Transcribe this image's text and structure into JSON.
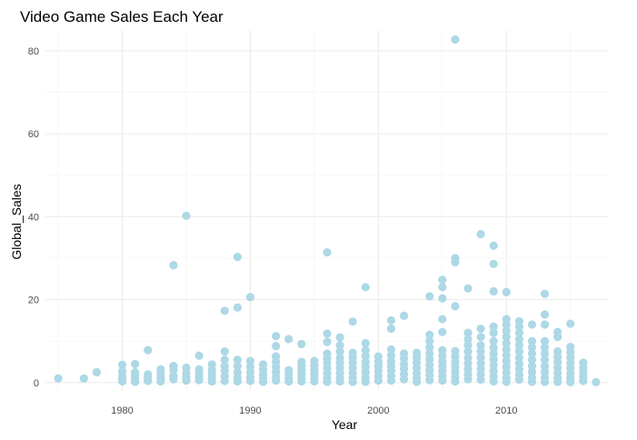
{
  "chart_data": {
    "type": "scatter",
    "title": "Video Game Sales Each Year",
    "xlabel": "Year",
    "ylabel": "Global_Sales",
    "xlim": [
      1974,
      2018
    ],
    "ylim": [
      -2,
      85
    ],
    "x_ticks": [
      1980,
      1990,
      2000,
      2010
    ],
    "y_ticks": [
      0,
      20,
      40,
      60,
      80
    ],
    "x_tick_labels": [
      "1980",
      "1990",
      "2000",
      "2010"
    ],
    "y_tick_labels": [
      "0",
      "20",
      "40",
      "60",
      "80"
    ],
    "grid": true,
    "legend": "none",
    "point_color": "#add8e6",
    "series": [
      {
        "points": [
          [
            1975,
            1.0
          ],
          [
            1977,
            1.0
          ],
          [
            1978,
            2.5
          ],
          [
            1980,
            4.3
          ],
          [
            1980,
            2.7
          ],
          [
            1980,
            1.5
          ],
          [
            1980,
            0.8
          ],
          [
            1980,
            0.3
          ],
          [
            1981,
            4.5
          ],
          [
            1981,
            2.5
          ],
          [
            1981,
            1.8
          ],
          [
            1981,
            1.2
          ],
          [
            1981,
            0.6
          ],
          [
            1981,
            0.2
          ],
          [
            1982,
            7.8
          ],
          [
            1982,
            2.0
          ],
          [
            1982,
            1.4
          ],
          [
            1982,
            0.9
          ],
          [
            1982,
            0.4
          ],
          [
            1983,
            3.2
          ],
          [
            1983,
            2.2
          ],
          [
            1983,
            1.3
          ],
          [
            1983,
            0.7
          ],
          [
            1983,
            0.3
          ],
          [
            1984,
            28.3
          ],
          [
            1984,
            4.0
          ],
          [
            1984,
            3.0
          ],
          [
            1984,
            1.6
          ],
          [
            1984,
            0.8
          ],
          [
            1985,
            40.2
          ],
          [
            1985,
            3.6
          ],
          [
            1985,
            2.4
          ],
          [
            1985,
            1.4
          ],
          [
            1985,
            0.5
          ],
          [
            1986,
            6.5
          ],
          [
            1986,
            3.2
          ],
          [
            1986,
            2.3
          ],
          [
            1986,
            1.4
          ],
          [
            1986,
            0.6
          ],
          [
            1987,
            4.4
          ],
          [
            1987,
            3.1
          ],
          [
            1987,
            2.0
          ],
          [
            1987,
            1.1
          ],
          [
            1987,
            0.3
          ],
          [
            1988,
            17.3
          ],
          [
            1988,
            7.5
          ],
          [
            1988,
            5.5
          ],
          [
            1988,
            4.0
          ],
          [
            1988,
            2.8
          ],
          [
            1988,
            1.5
          ],
          [
            1988,
            0.4
          ],
          [
            1989,
            30.3
          ],
          [
            1989,
            18.1
          ],
          [
            1989,
            5.5
          ],
          [
            1989,
            4.0
          ],
          [
            1989,
            2.5
          ],
          [
            1989,
            1.2
          ],
          [
            1989,
            0.3
          ],
          [
            1990,
            20.6
          ],
          [
            1990,
            5.2
          ],
          [
            1990,
            3.8
          ],
          [
            1990,
            2.5
          ],
          [
            1990,
            1.3
          ],
          [
            1990,
            0.4
          ],
          [
            1991,
            4.4
          ],
          [
            1991,
            3.2
          ],
          [
            1991,
            2.0
          ],
          [
            1991,
            1.0
          ],
          [
            1991,
            0.2
          ],
          [
            1992,
            11.2
          ],
          [
            1992,
            8.8
          ],
          [
            1992,
            6.3
          ],
          [
            1992,
            5.0
          ],
          [
            1992,
            3.8
          ],
          [
            1992,
            2.6
          ],
          [
            1992,
            1.5
          ],
          [
            1992,
            0.5
          ],
          [
            1993,
            10.5
          ],
          [
            1993,
            3.0
          ],
          [
            1993,
            2.0
          ],
          [
            1993,
            1.0
          ],
          [
            1993,
            0.3
          ],
          [
            1994,
            9.3
          ],
          [
            1994,
            5.0
          ],
          [
            1994,
            4.0
          ],
          [
            1994,
            3.0
          ],
          [
            1994,
            2.0
          ],
          [
            1994,
            1.0
          ],
          [
            1994,
            0.3
          ],
          [
            1995,
            5.2
          ],
          [
            1995,
            4.1
          ],
          [
            1995,
            3.0
          ],
          [
            1995,
            2.0
          ],
          [
            1995,
            1.0
          ],
          [
            1995,
            0.3
          ],
          [
            1996,
            31.4
          ],
          [
            1996,
            11.8
          ],
          [
            1996,
            9.8
          ],
          [
            1996,
            7.0
          ],
          [
            1996,
            5.8
          ],
          [
            1996,
            4.6
          ],
          [
            1996,
            3.4
          ],
          [
            1996,
            2.2
          ],
          [
            1996,
            1.0
          ],
          [
            1996,
            0.2
          ],
          [
            1997,
            10.9
          ],
          [
            1997,
            9.0
          ],
          [
            1997,
            7.5
          ],
          [
            1997,
            6.0
          ],
          [
            1997,
            4.8
          ],
          [
            1997,
            3.6
          ],
          [
            1997,
            2.4
          ],
          [
            1997,
            1.2
          ],
          [
            1997,
            0.3
          ],
          [
            1998,
            14.7
          ],
          [
            1998,
            7.2
          ],
          [
            1998,
            6.0
          ],
          [
            1998,
            4.8
          ],
          [
            1998,
            3.6
          ],
          [
            1998,
            2.4
          ],
          [
            1998,
            1.2
          ],
          [
            1998,
            0.2
          ],
          [
            1999,
            23.0
          ],
          [
            1999,
            9.5
          ],
          [
            1999,
            7.8
          ],
          [
            1999,
            6.4
          ],
          [
            1999,
            5.0
          ],
          [
            1999,
            3.8
          ],
          [
            1999,
            2.5
          ],
          [
            1999,
            1.2
          ],
          [
            1999,
            0.2
          ],
          [
            2000,
            6.3
          ],
          [
            2000,
            5.1
          ],
          [
            2000,
            4.0
          ],
          [
            2000,
            2.8
          ],
          [
            2000,
            1.6
          ],
          [
            2000,
            0.5
          ],
          [
            2001,
            15.0
          ],
          [
            2001,
            13.0
          ],
          [
            2001,
            8.0
          ],
          [
            2001,
            6.5
          ],
          [
            2001,
            5.2
          ],
          [
            2001,
            4.0
          ],
          [
            2001,
            2.8
          ],
          [
            2001,
            1.6
          ],
          [
            2001,
            0.5
          ],
          [
            2002,
            16.1
          ],
          [
            2002,
            7.0
          ],
          [
            2002,
            5.8
          ],
          [
            2002,
            4.5
          ],
          [
            2002,
            3.3
          ],
          [
            2002,
            2.0
          ],
          [
            2002,
            0.8
          ],
          [
            2003,
            7.2
          ],
          [
            2003,
            6.0
          ],
          [
            2003,
            4.7
          ],
          [
            2003,
            3.5
          ],
          [
            2003,
            2.2
          ],
          [
            2003,
            1.0
          ],
          [
            2003,
            0.2
          ],
          [
            2004,
            20.8
          ],
          [
            2004,
            11.5
          ],
          [
            2004,
            10.0
          ],
          [
            2004,
            8.5
          ],
          [
            2004,
            7.0
          ],
          [
            2004,
            5.6
          ],
          [
            2004,
            4.3
          ],
          [
            2004,
            3.0
          ],
          [
            2004,
            1.8
          ],
          [
            2004,
            0.6
          ],
          [
            2005,
            24.8
          ],
          [
            2005,
            23.0
          ],
          [
            2005,
            20.3
          ],
          [
            2005,
            15.3
          ],
          [
            2005,
            12.2
          ],
          [
            2005,
            7.8
          ],
          [
            2005,
            6.5
          ],
          [
            2005,
            5.2
          ],
          [
            2005,
            4.0
          ],
          [
            2005,
            2.8
          ],
          [
            2005,
            1.6
          ],
          [
            2005,
            0.5
          ],
          [
            2006,
            82.7
          ],
          [
            2006,
            30.0
          ],
          [
            2006,
            29.0
          ],
          [
            2006,
            18.4
          ],
          [
            2006,
            7.6
          ],
          [
            2006,
            6.3
          ],
          [
            2006,
            5.0
          ],
          [
            2006,
            3.8
          ],
          [
            2006,
            2.6
          ],
          [
            2006,
            1.4
          ],
          [
            2006,
            0.3
          ],
          [
            2007,
            22.7
          ],
          [
            2007,
            12.0
          ],
          [
            2007,
            10.5
          ],
          [
            2007,
            9.0
          ],
          [
            2007,
            7.5
          ],
          [
            2007,
            6.0
          ],
          [
            2007,
            4.6
          ],
          [
            2007,
            3.3
          ],
          [
            2007,
            2.0
          ],
          [
            2007,
            0.8
          ],
          [
            2008,
            35.8
          ],
          [
            2008,
            13.0
          ],
          [
            2008,
            11.0
          ],
          [
            2008,
            9.0
          ],
          [
            2008,
            7.5
          ],
          [
            2008,
            6.0
          ],
          [
            2008,
            4.6
          ],
          [
            2008,
            3.3
          ],
          [
            2008,
            2.0
          ],
          [
            2008,
            0.7
          ],
          [
            2009,
            33.0
          ],
          [
            2009,
            28.6
          ],
          [
            2009,
            22.0
          ],
          [
            2009,
            13.5
          ],
          [
            2009,
            12.0
          ],
          [
            2009,
            10.0
          ],
          [
            2009,
            8.4
          ],
          [
            2009,
            7.0
          ],
          [
            2009,
            5.6
          ],
          [
            2009,
            4.2
          ],
          [
            2009,
            2.8
          ],
          [
            2009,
            1.5
          ],
          [
            2009,
            0.3
          ],
          [
            2010,
            21.8
          ],
          [
            2010,
            15.3
          ],
          [
            2010,
            14.0
          ],
          [
            2010,
            12.5
          ],
          [
            2010,
            11.0
          ],
          [
            2010,
            9.5
          ],
          [
            2010,
            8.0
          ],
          [
            2010,
            6.6
          ],
          [
            2010,
            5.2
          ],
          [
            2010,
            3.8
          ],
          [
            2010,
            2.4
          ],
          [
            2010,
            1.2
          ],
          [
            2010,
            0.2
          ],
          [
            2011,
            14.8
          ],
          [
            2011,
            13.5
          ],
          [
            2011,
            12.0
          ],
          [
            2011,
            10.5
          ],
          [
            2011,
            9.0
          ],
          [
            2011,
            7.5
          ],
          [
            2011,
            6.0
          ],
          [
            2011,
            4.6
          ],
          [
            2011,
            3.2
          ],
          [
            2011,
            1.9
          ],
          [
            2011,
            0.7
          ],
          [
            2012,
            14.0
          ],
          [
            2012,
            10.0
          ],
          [
            2012,
            8.5
          ],
          [
            2012,
            7.0
          ],
          [
            2012,
            5.5
          ],
          [
            2012,
            4.0
          ],
          [
            2012,
            2.6
          ],
          [
            2012,
            1.3
          ],
          [
            2012,
            0.2
          ],
          [
            2013,
            21.4
          ],
          [
            2013,
            16.4
          ],
          [
            2013,
            14.0
          ],
          [
            2013,
            10.0
          ],
          [
            2013,
            8.5
          ],
          [
            2013,
            7.0
          ],
          [
            2013,
            5.5
          ],
          [
            2013,
            4.0
          ],
          [
            2013,
            2.6
          ],
          [
            2013,
            1.3
          ],
          [
            2013,
            0.2
          ],
          [
            2014,
            12.2
          ],
          [
            2014,
            11.0
          ],
          [
            2014,
            7.5
          ],
          [
            2014,
            6.2
          ],
          [
            2014,
            5.0
          ],
          [
            2014,
            3.7
          ],
          [
            2014,
            2.4
          ],
          [
            2014,
            1.2
          ],
          [
            2014,
            0.2
          ],
          [
            2015,
            14.2
          ],
          [
            2015,
            8.6
          ],
          [
            2015,
            7.3
          ],
          [
            2015,
            6.0
          ],
          [
            2015,
            4.7
          ],
          [
            2015,
            3.5
          ],
          [
            2015,
            2.2
          ],
          [
            2015,
            1.0
          ],
          [
            2015,
            0.1
          ],
          [
            2016,
            4.8
          ],
          [
            2016,
            3.6
          ],
          [
            2016,
            2.5
          ],
          [
            2016,
            1.4
          ],
          [
            2016,
            0.4
          ],
          [
            2017,
            0.1
          ]
        ]
      }
    ]
  }
}
